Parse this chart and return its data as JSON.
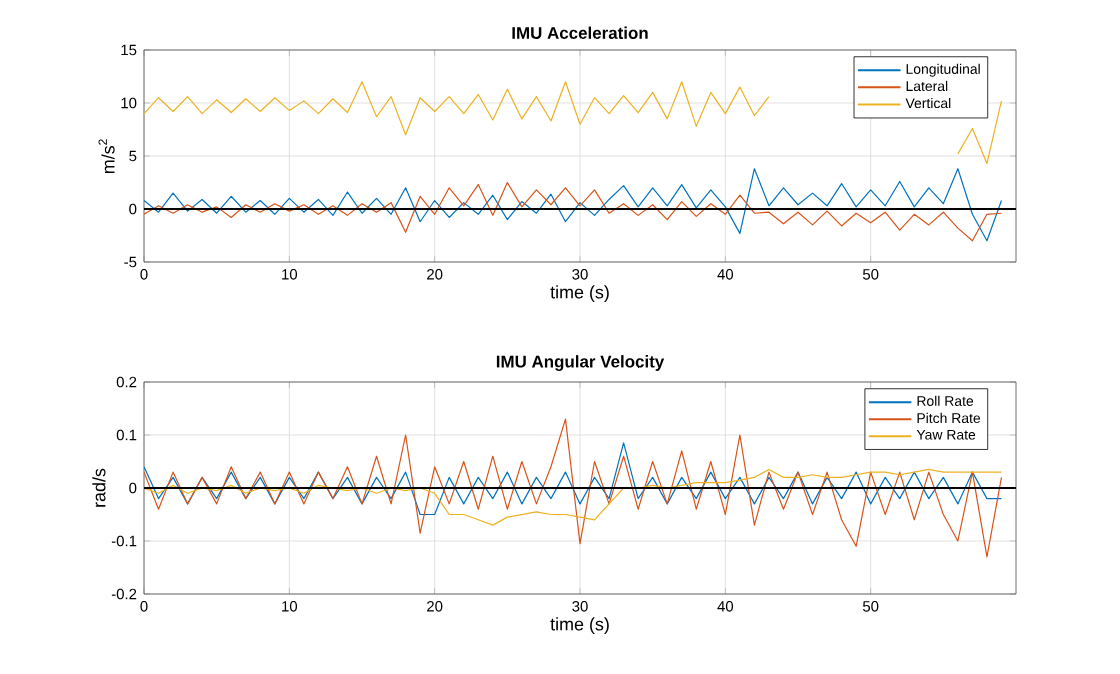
{
  "chart_data": [
    {
      "type": "line",
      "title": "IMU Acceleration",
      "xlabel": "time (s)",
      "ylabel": "m/s$^{2}$",
      "xlim": [
        0,
        60
      ],
      "ylim": [
        -5,
        15
      ],
      "xticks": [
        0,
        10,
        20,
        30,
        40,
        50
      ],
      "yticks": [
        -5,
        0,
        5,
        10,
        15
      ],
      "grid": true,
      "legend": "top right",
      "marker": "none",
      "line_style": "solid",
      "x": [
        0,
        1,
        2,
        3,
        4,
        5,
        6,
        7,
        8,
        9,
        10,
        11,
        12,
        13,
        14,
        15,
        16,
        17,
        18,
        19,
        20,
        21,
        22,
        23,
        24,
        25,
        26,
        27,
        28,
        29,
        30,
        31,
        32,
        33,
        34,
        35,
        36,
        37,
        38,
        39,
        40,
        41,
        42,
        43,
        44,
        45,
        46,
        47,
        48,
        49,
        50,
        51,
        52,
        53,
        54,
        55,
        56,
        57,
        58,
        59
      ],
      "series": [
        {
          "name": "Longitudinal",
          "color": "#0072bd",
          "values": [
            0.8,
            -0.3,
            1.5,
            -0.2,
            0.9,
            -0.4,
            1.2,
            -0.3,
            0.8,
            -0.5,
            1.0,
            -0.3,
            0.9,
            -0.6,
            1.6,
            -0.4,
            1.0,
            -0.5,
            2.0,
            -1.2,
            0.8,
            -0.8,
            0.6,
            -0.5,
            1.3,
            -1.0,
            0.7,
            -0.4,
            1.4,
            -1.2,
            0.6,
            -0.6,
            0.9,
            2.2,
            0.2,
            2.0,
            0.3,
            2.3,
            0.1,
            1.8,
            0.2,
            -2.3,
            3.8,
            0.3,
            2.0,
            0.4,
            1.5,
            0.3,
            2.4,
            0.2,
            1.8,
            0.3,
            2.6,
            0.2,
            2.0,
            0.5,
            3.8,
            -0.5,
            -3.0,
            0.8
          ]
        },
        {
          "name": "Lateral",
          "color": "#d95319",
          "values": [
            -0.5,
            0.3,
            -0.4,
            0.4,
            -0.3,
            0.2,
            -0.8,
            0.4,
            -0.3,
            0.5,
            -0.2,
            0.4,
            -0.5,
            0.3,
            -0.6,
            0.5,
            -0.3,
            0.6,
            -2.2,
            1.2,
            -0.5,
            2.0,
            0.3,
            2.3,
            -0.6,
            2.5,
            0.2,
            1.8,
            0.4,
            2.0,
            0.3,
            1.8,
            -0.4,
            0.5,
            -0.6,
            0.4,
            -1.0,
            0.7,
            -0.7,
            0.5,
            -0.5,
            1.3,
            -0.4,
            -0.3,
            -1.4,
            -0.3,
            -1.5,
            -0.2,
            -1.6,
            -0.4,
            -1.3,
            -0.3,
            -2.0,
            -0.5,
            -1.5,
            -0.3,
            -1.8,
            -3.0,
            -0.5,
            -0.4
          ]
        },
        {
          "name": "Vertical",
          "color": "#edb120",
          "values": [
            9.0,
            10.5,
            9.2,
            10.6,
            9.0,
            10.3,
            9.1,
            10.4,
            9.2,
            10.5,
            9.3,
            10.2,
            9.0,
            10.4,
            9.1,
            12.0,
            8.7,
            10.6,
            7.0,
            10.5,
            9.2,
            10.6,
            9.0,
            10.8,
            8.4,
            11.3,
            8.5,
            10.6,
            8.3,
            12.0,
            8.0,
            10.5,
            9.0,
            10.7,
            9.1,
            11.0,
            8.5,
            12.0,
            7.8,
            11.0,
            9.0,
            11.5,
            8.8,
            10.6,
            null,
            null,
            null,
            null,
            null,
            null,
            null,
            null,
            null,
            null,
            null,
            null,
            5.2,
            7.6,
            4.3,
            10.2
          ]
        }
      ],
      "ref_lines": [
        {
          "axis": "y",
          "value": 0,
          "color": "#000000"
        }
      ]
    },
    {
      "type": "line",
      "title": "IMU Angular Velocity",
      "xlabel": "time (s)",
      "ylabel": "rad/s",
      "xlim": [
        0,
        60
      ],
      "ylim": [
        -0.2,
        0.2
      ],
      "xticks": [
        0,
        10,
        20,
        30,
        40,
        50
      ],
      "yticks": [
        -0.2,
        -0.1,
        0,
        0.1,
        0.2
      ],
      "grid": true,
      "legend": "top right",
      "marker": "none",
      "line_style": "solid",
      "x": [
        0,
        1,
        2,
        3,
        4,
        5,
        6,
        7,
        8,
        9,
        10,
        11,
        12,
        13,
        14,
        15,
        16,
        17,
        18,
        19,
        20,
        21,
        22,
        23,
        24,
        25,
        26,
        27,
        28,
        29,
        30,
        31,
        32,
        33,
        34,
        35,
        36,
        37,
        38,
        39,
        40,
        41,
        42,
        43,
        44,
        45,
        46,
        47,
        48,
        49,
        50,
        51,
        52,
        53,
        54,
        55,
        56,
        57,
        58,
        59
      ],
      "series": [
        {
          "name": "Roll Rate",
          "color": "#0072bd",
          "values": [
            0.04,
            -0.02,
            0.02,
            -0.03,
            0.02,
            -0.02,
            0.03,
            -0.02,
            0.02,
            -0.03,
            0.02,
            -0.02,
            0.03,
            -0.02,
            0.02,
            -0.03,
            0.02,
            -0.02,
            0.03,
            -0.05,
            -0.05,
            0.02,
            -0.03,
            0.02,
            -0.02,
            0.03,
            -0.03,
            0.02,
            -0.02,
            0.03,
            -0.03,
            0.02,
            -0.02,
            0.085,
            -0.02,
            0.02,
            -0.03,
            0.02,
            -0.02,
            0.03,
            -0.02,
            0.02,
            -0.03,
            0.02,
            -0.02,
            0.03,
            -0.03,
            0.02,
            -0.02,
            0.03,
            -0.03,
            0.02,
            -0.02,
            0.03,
            -0.02,
            0.02,
            -0.03,
            0.03,
            -0.02,
            -0.02
          ]
        },
        {
          "name": "Pitch Rate",
          "color": "#d95319",
          "values": [
            0.03,
            -0.04,
            0.03,
            -0.03,
            0.02,
            -0.03,
            0.04,
            -0.02,
            0.03,
            -0.03,
            0.03,
            -0.03,
            0.03,
            -0.02,
            0.04,
            -0.03,
            0.06,
            -0.03,
            0.1,
            -0.085,
            0.04,
            -0.03,
            0.05,
            -0.04,
            0.06,
            -0.04,
            0.05,
            -0.03,
            0.04,
            0.13,
            -0.105,
            0.05,
            -0.03,
            0.06,
            -0.04,
            0.05,
            -0.03,
            0.07,
            -0.04,
            0.05,
            -0.05,
            0.1,
            -0.07,
            0.03,
            -0.04,
            0.03,
            -0.05,
            0.03,
            -0.06,
            -0.11,
            0.03,
            -0.05,
            0.03,
            -0.06,
            0.03,
            -0.05,
            -0.1,
            0.03,
            -0.13,
            0.02
          ]
        },
        {
          "name": "Yaw Rate",
          "color": "#edb120",
          "values": [
            0,
            -0.01,
            0.005,
            -0.01,
            0,
            -0.005,
            0.005,
            -0.01,
            0,
            -0.005,
            0,
            -0.01,
            0.005,
            0,
            -0.005,
            0,
            -0.01,
            0,
            -0.005,
            0,
            -0.01,
            -0.05,
            -0.05,
            -0.06,
            -0.07,
            -0.055,
            -0.05,
            -0.045,
            -0.05,
            -0.05,
            -0.055,
            -0.06,
            -0.03,
            0,
            0,
            0.005,
            0,
            0.005,
            0.01,
            0.01,
            0.01,
            0.015,
            0.02,
            0.035,
            0.02,
            0.02,
            0.025,
            0.02,
            0.02,
            0.025,
            0.03,
            0.03,
            0.025,
            0.03,
            0.035,
            0.03,
            0.03,
            0.03,
            0.03,
            0.03
          ]
        }
      ],
      "ref_lines": [
        {
          "axis": "y",
          "value": 0,
          "color": "#000000"
        }
      ]
    }
  ]
}
